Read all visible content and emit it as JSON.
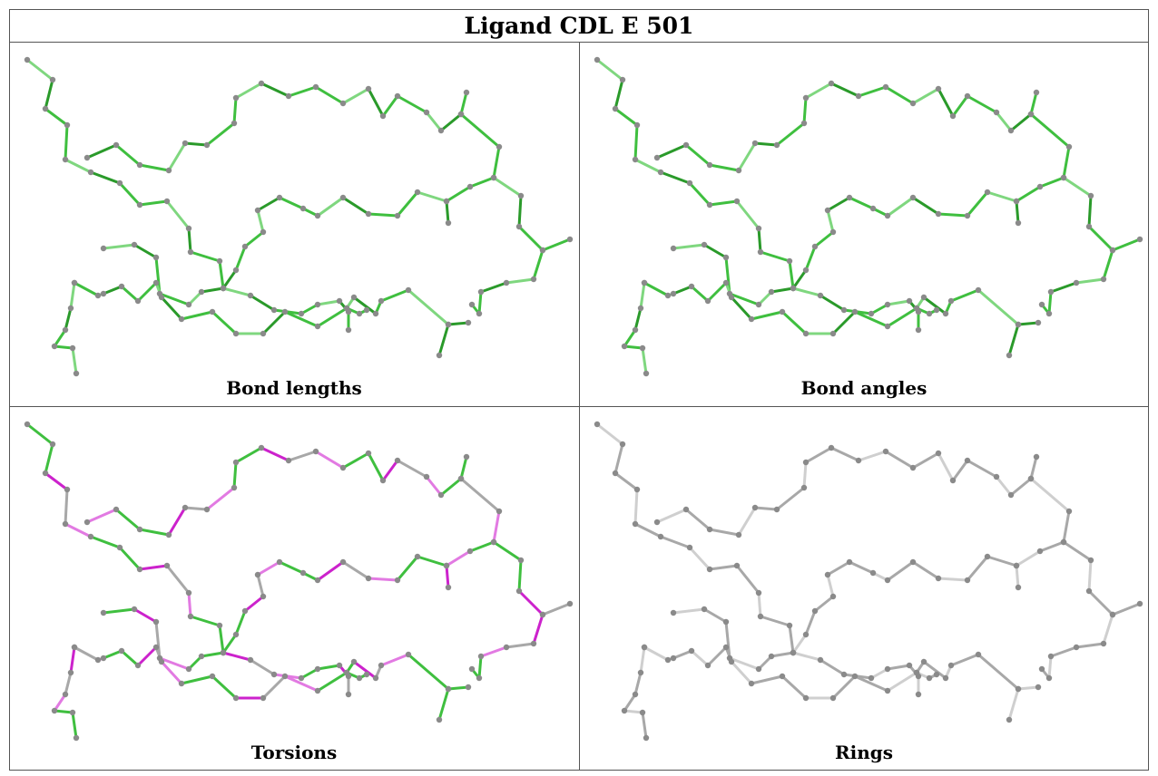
{
  "title": "Ligand CDL E 501",
  "panels": [
    {
      "caption": "Bond lengths",
      "scheme": "green"
    },
    {
      "caption": "Bond angles",
      "scheme": "green"
    },
    {
      "caption": "Torsions",
      "scheme": "torsion"
    },
    {
      "caption": "Rings",
      "scheme": "gray"
    }
  ],
  "colors": {
    "green_dark": "#2a9a2a",
    "green_mid": "#3fbf3f",
    "green_light": "#7fd77f",
    "magenta": "#cc22cc",
    "magenta_light": "#e27ae2",
    "gray_bond": "#a8a8a8",
    "gray_bond_light": "#cfcfcf",
    "atom": "#8a8a8a"
  }
}
